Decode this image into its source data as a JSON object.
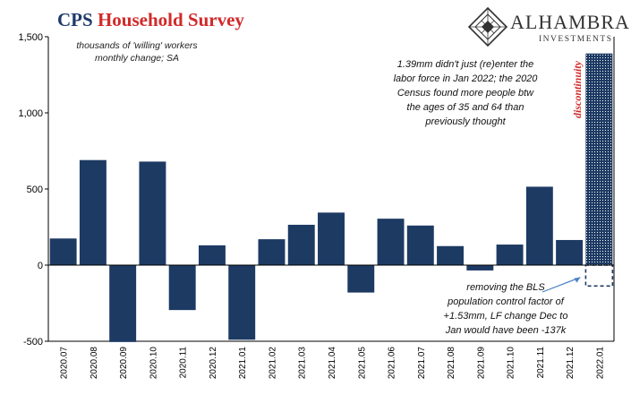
{
  "header": {
    "title_part1": "CPS",
    "title_part2": "Household Survey",
    "subtitle": "thousands of 'willing' workers\nmonthly change; SA"
  },
  "logo": {
    "name": "ALHAMBRA",
    "sub": "INVESTMENTS",
    "icon": "diamond-lattice-icon"
  },
  "annotations": {
    "top": "1.39mm didn't just (re)enter the\nlabor force in Jan 2022; the 2020\nCensus found more people btw\nthe ages of 35 and 64 than\npreviously thought",
    "bottom": "removing the BLS\npopulation control factor of\n+1.53mm, LF change Dec to\nJan would have  been -137k",
    "vertical": "discontinuity"
  },
  "colors": {
    "bar": "#1d3a63",
    "hatch": "#1d3a63",
    "title_red": "#d12a2a",
    "title_blue": "#1f3a6b",
    "arrow": "#4a82c4"
  },
  "chart_data": {
    "type": "bar",
    "categories": [
      "2020.07",
      "2020.08",
      "2020.09",
      "2020.10",
      "2020.11",
      "2020.12",
      "2021.01",
      "2021.02",
      "2021.03",
      "2021.04",
      "2021.05",
      "2021.06",
      "2021.07",
      "2021.08",
      "2021.09",
      "2021.10",
      "2021.11",
      "2021.12",
      "2022.01"
    ],
    "values": [
      175,
      690,
      -505,
      680,
      -295,
      130,
      -490,
      170,
      265,
      345,
      -180,
      305,
      260,
      125,
      -35,
      135,
      515,
      165,
      1390
    ],
    "adjusted_last_value": -137,
    "hatched_last_bar": true,
    "ylim": [
      -500,
      1500
    ],
    "yticks": [
      -500,
      0,
      500,
      1000,
      1500
    ],
    "ytick_labels": [
      "-500",
      "0",
      "500",
      "1,000",
      "1,500"
    ],
    "xlabel": "",
    "ylabel": "",
    "grid": false
  }
}
